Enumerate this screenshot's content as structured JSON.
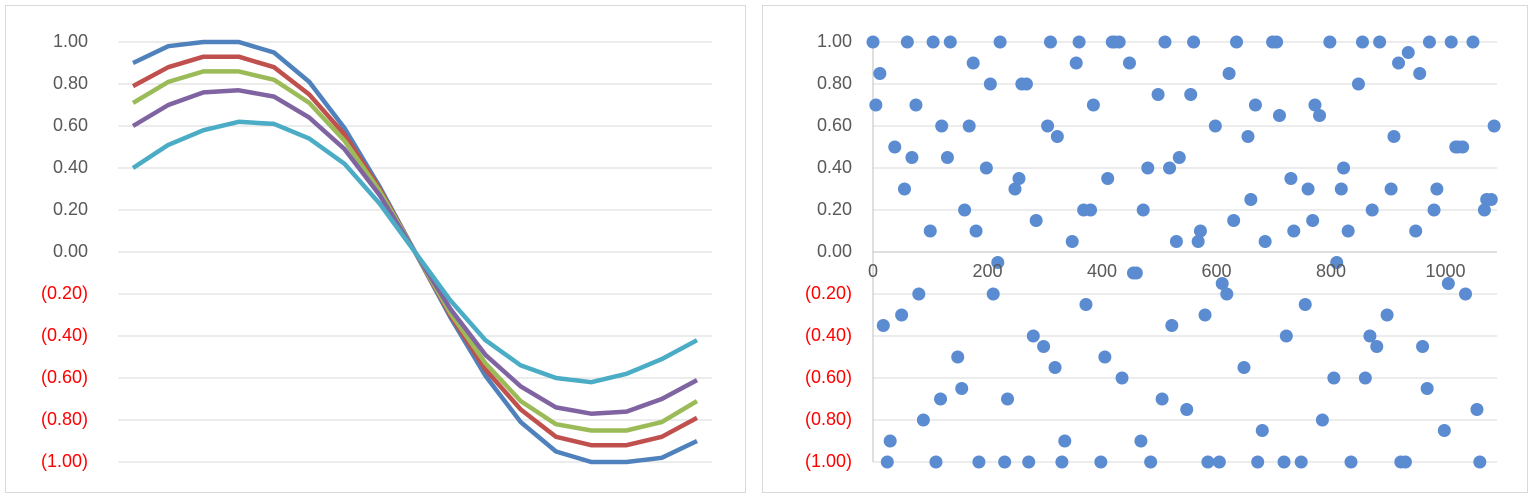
{
  "chart_data": [
    {
      "type": "line",
      "ylim": [
        -1,
        1
      ],
      "yticks": [
        {
          "value": 1,
          "label": "1.00"
        },
        {
          "value": 0.8,
          "label": "0.80"
        },
        {
          "value": 0.6,
          "label": "0.60"
        },
        {
          "value": 0.4,
          "label": "0.40"
        },
        {
          "value": 0.2,
          "label": "0.20"
        },
        {
          "value": 0,
          "label": "0.00"
        },
        {
          "value": -0.2,
          "label": "(0.20)"
        },
        {
          "value": -0.4,
          "label": "(0.40)"
        },
        {
          "value": -0.6,
          "label": "(0.60)"
        },
        {
          "value": -0.8,
          "label": "(0.80)"
        },
        {
          "value": -1,
          "label": "(1.00)"
        }
      ],
      "negative_label_color": "#ff0000",
      "grid": true,
      "series": [
        {
          "color": "#4f81bd",
          "values": [
            0.9,
            0.98,
            1.0,
            1.0,
            0.95,
            0.81,
            0.59,
            0.31,
            0,
            -0.31,
            -0.59,
            -0.81,
            -0.95,
            -1.0,
            -1.0,
            -0.98,
            -0.9
          ]
        },
        {
          "color": "#c0504d",
          "values": [
            0.79,
            0.88,
            0.93,
            0.93,
            0.88,
            0.75,
            0.56,
            0.3,
            0,
            -0.3,
            -0.56,
            -0.75,
            -0.88,
            -0.92,
            -0.92,
            -0.88,
            -0.79
          ]
        },
        {
          "color": "#9bbb59",
          "values": [
            0.71,
            0.81,
            0.86,
            0.86,
            0.82,
            0.71,
            0.53,
            0.29,
            0,
            -0.29,
            -0.53,
            -0.71,
            -0.82,
            -0.85,
            -0.85,
            -0.81,
            -0.71
          ]
        },
        {
          "color": "#8064a2",
          "values": [
            0.6,
            0.7,
            0.76,
            0.77,
            0.74,
            0.64,
            0.49,
            0.27,
            0,
            -0.27,
            -0.49,
            -0.64,
            -0.74,
            -0.77,
            -0.76,
            -0.7,
            -0.61
          ]
        },
        {
          "color": "#4bacc6",
          "values": [
            0.4,
            0.51,
            0.58,
            0.62,
            0.61,
            0.54,
            0.42,
            0.23,
            0,
            -0.23,
            -0.42,
            -0.54,
            -0.6,
            -0.62,
            -0.58,
            -0.51,
            -0.42
          ]
        }
      ]
    },
    {
      "type": "scatter",
      "xlim": [
        0,
        1090
      ],
      "xticks": [
        0,
        200,
        400,
        600,
        800,
        1000
      ],
      "ylim": [
        -1,
        1
      ],
      "yticks": [
        {
          "value": 1,
          "label": "1.00"
        },
        {
          "value": 0.8,
          "label": "0.80"
        },
        {
          "value": 0.6,
          "label": "0.60"
        },
        {
          "value": 0.4,
          "label": "0.40"
        },
        {
          "value": 0.2,
          "label": "0.20"
        },
        {
          "value": 0,
          "label": "0.00"
        },
        {
          "value": -0.2,
          "label": "(0.20)"
        },
        {
          "value": -0.4,
          "label": "(0.40)"
        },
        {
          "value": -0.6,
          "label": "(0.60)"
        },
        {
          "value": -0.8,
          "label": "(0.80)"
        },
        {
          "value": -1,
          "label": "(1.00)"
        }
      ],
      "negative_label_color": "#ff0000",
      "grid": true,
      "color": "#5b8bd0",
      "x": [
        0,
        12,
        25,
        38,
        50,
        60,
        75,
        88,
        100,
        110,
        120,
        135,
        148,
        160,
        175,
        185,
        198,
        210,
        222,
        235,
        248,
        260,
        272,
        285,
        298,
        310,
        322,
        335,
        348,
        360,
        372,
        385,
        398,
        410,
        422,
        435,
        448,
        460,
        472,
        485,
        498,
        510,
        522,
        535,
        548,
        560,
        572,
        585,
        598,
        610,
        622,
        635,
        648,
        660,
        672,
        685,
        698,
        710,
        722,
        735,
        748,
        760,
        772,
        785,
        798,
        810,
        822,
        835,
        848,
        860,
        872,
        885,
        898,
        910,
        922,
        935,
        948,
        960,
        972,
        985,
        998,
        1010,
        1022,
        1035,
        1048,
        1060,
        1072,
        1085,
        5,
        30,
        55,
        80,
        105,
        130,
        155,
        180,
        205,
        230,
        255,
        280,
        305,
        330,
        355,
        380,
        405,
        430,
        455,
        480,
        505,
        530,
        555,
        580,
        605,
        630,
        655,
        680,
        705,
        730,
        755,
        780,
        805,
        830,
        855,
        880,
        905,
        930,
        955,
        980,
        1005,
        1030,
        1055,
        1080,
        18,
        68,
        118,
        168,
        218,
        268,
        318,
        368,
        418,
        468,
        518,
        568,
        618,
        668,
        718,
        768,
        818,
        868,
        918,
        968,
        1018,
        1068
      ],
      "y": [
        1,
        0.85,
        -1,
        0.5,
        -0.3,
        1,
        0.7,
        -0.8,
        0.1,
        -1,
        0.6,
        1,
        -0.5,
        0.2,
        0.9,
        -1,
        0.4,
        -0.2,
        1,
        -0.7,
        0.3,
        0.8,
        -1,
        0.15,
        -0.45,
        1,
        0.55,
        -0.9,
        0.05,
        1,
        -0.25,
        0.7,
        -1,
        0.35,
        1,
        -0.6,
        0.9,
        -0.1,
        0.2,
        -1,
        0.75,
        1,
        -0.35,
        0.45,
        -0.75,
        1,
        0.1,
        -1,
        0.6,
        -0.15,
        0.85,
        1,
        -0.55,
        0.25,
        -1,
        0.05,
        1,
        0.65,
        -0.4,
        0.1,
        -1,
        0.3,
        0.7,
        -0.8,
        1,
        -0.05,
        0.4,
        -1,
        0.8,
        -0.6,
        0.2,
        1,
        -0.3,
        0.55,
        -1,
        0.95,
        0.1,
        -0.45,
        1,
        0.3,
        -0.85,
        1,
        0.5,
        -0.2,
        1,
        -1,
        0.25,
        0.6,
        0.7,
        -0.9,
        0.3,
        -0.2,
        1,
        0.45,
        -0.65,
        0.1,
        0.8,
        -1,
        0.35,
        -0.4,
        0.6,
        -1,
        0.9,
        0.2,
        -0.5,
        1,
        -0.1,
        0.4,
        -0.7,
        0.05,
        0.75,
        -0.3,
        -1,
        0.15,
        0.55,
        -0.85,
        1,
        0.35,
        -0.25,
        0.65,
        -0.6,
        0.1,
        1,
        -0.45,
        0.3,
        -1,
        0.85,
        0.2,
        -0.15,
        0.5,
        -0.75,
        0.25,
        -0.35,
        0.45,
        -0.7,
        0.6,
        -0.05,
        0.8,
        -0.55,
        0.2,
        1,
        -0.9,
        0.4,
        0.05,
        -0.2,
        0.7,
        -1,
        0.15,
        0.3,
        -0.4,
        0.9,
        -0.65,
        0.5,
        0.2
      ]
    }
  ]
}
